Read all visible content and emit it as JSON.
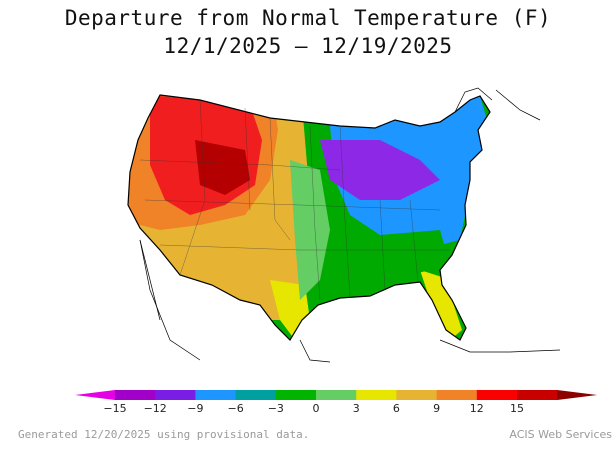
{
  "header": {
    "title": "Departure from Normal Temperature (F)",
    "date_range": "12/1/2025 – 12/19/2025"
  },
  "legend": {
    "ticks": [
      "−15",
      "−12",
      "−9",
      "−6",
      "−3",
      "0",
      "3",
      "6",
      "9",
      "12",
      "15"
    ],
    "colors": [
      "#e600e6",
      "#a000c8",
      "#7a1ee6",
      "#1e96ff",
      "#00a0a0",
      "#00b400",
      "#64cd64",
      "#e6e600",
      "#e6b432",
      "#f08228",
      "#fa0000",
      "#c80000",
      "#8c0000"
    ]
  },
  "footer": {
    "generated": "Generated 12/20/2025 using provisional data.",
    "source": "ACIS Web Services"
  },
  "palette": {
    "dark_red": "#b40000",
    "red": "#f01e1e",
    "orange": "#f08228",
    "gold": "#e6b432",
    "yellow": "#e6e600",
    "light_green": "#64cd64",
    "green": "#00aa00",
    "blue": "#1e96ff",
    "purple": "#8c28e6",
    "outline": "#000000"
  }
}
